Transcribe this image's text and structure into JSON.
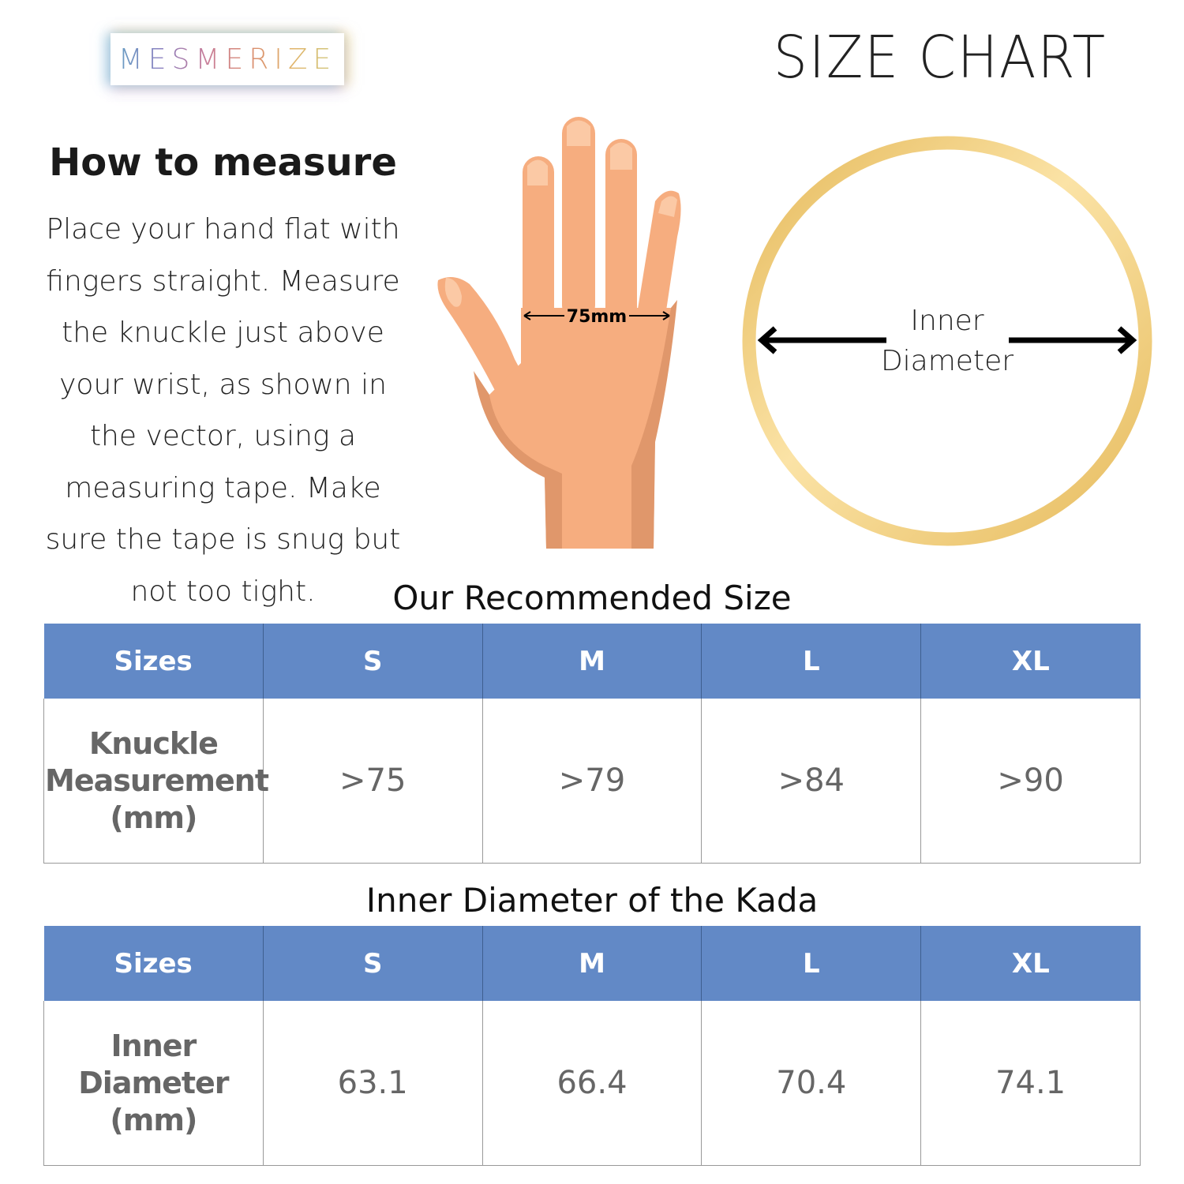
{
  "brand": {
    "logo_text": "MESMERIZE"
  },
  "header": {
    "title": "SIZE CHART"
  },
  "instructions": {
    "title": "How to measure",
    "body": "Place your hand flat with fingers straight. Measure the knuckle just above your wrist, as shown in the vector, using a measuring tape. Make sure the tape is snug but not too tight."
  },
  "hand_diagram": {
    "measurement_label": "75mm",
    "skin_color": "#f6ad7f",
    "shade_color": "#e0976b"
  },
  "ring_diagram": {
    "label_line1": "Inner",
    "label_line2": "Diameter",
    "ring_color": "#e9c266"
  },
  "colors": {
    "header_bg": "#6289c6",
    "cell_text": "#666666"
  },
  "recommended": {
    "title": "Our Recommended Size",
    "headers": [
      "Sizes",
      "S",
      "M",
      "L",
      "XL"
    ],
    "row_label": [
      "Knuckle",
      "Measurement",
      "(mm)"
    ],
    "values": [
      ">75",
      ">79",
      ">84",
      ">90"
    ]
  },
  "kada": {
    "title": "Inner Diameter of the Kada",
    "headers": [
      "Sizes",
      "S",
      "M",
      "L",
      "XL"
    ],
    "row_label": [
      "Inner",
      "Diameter",
      "(mm)"
    ],
    "values": [
      "63.1",
      "66.4",
      "70.4",
      "74.1"
    ]
  }
}
